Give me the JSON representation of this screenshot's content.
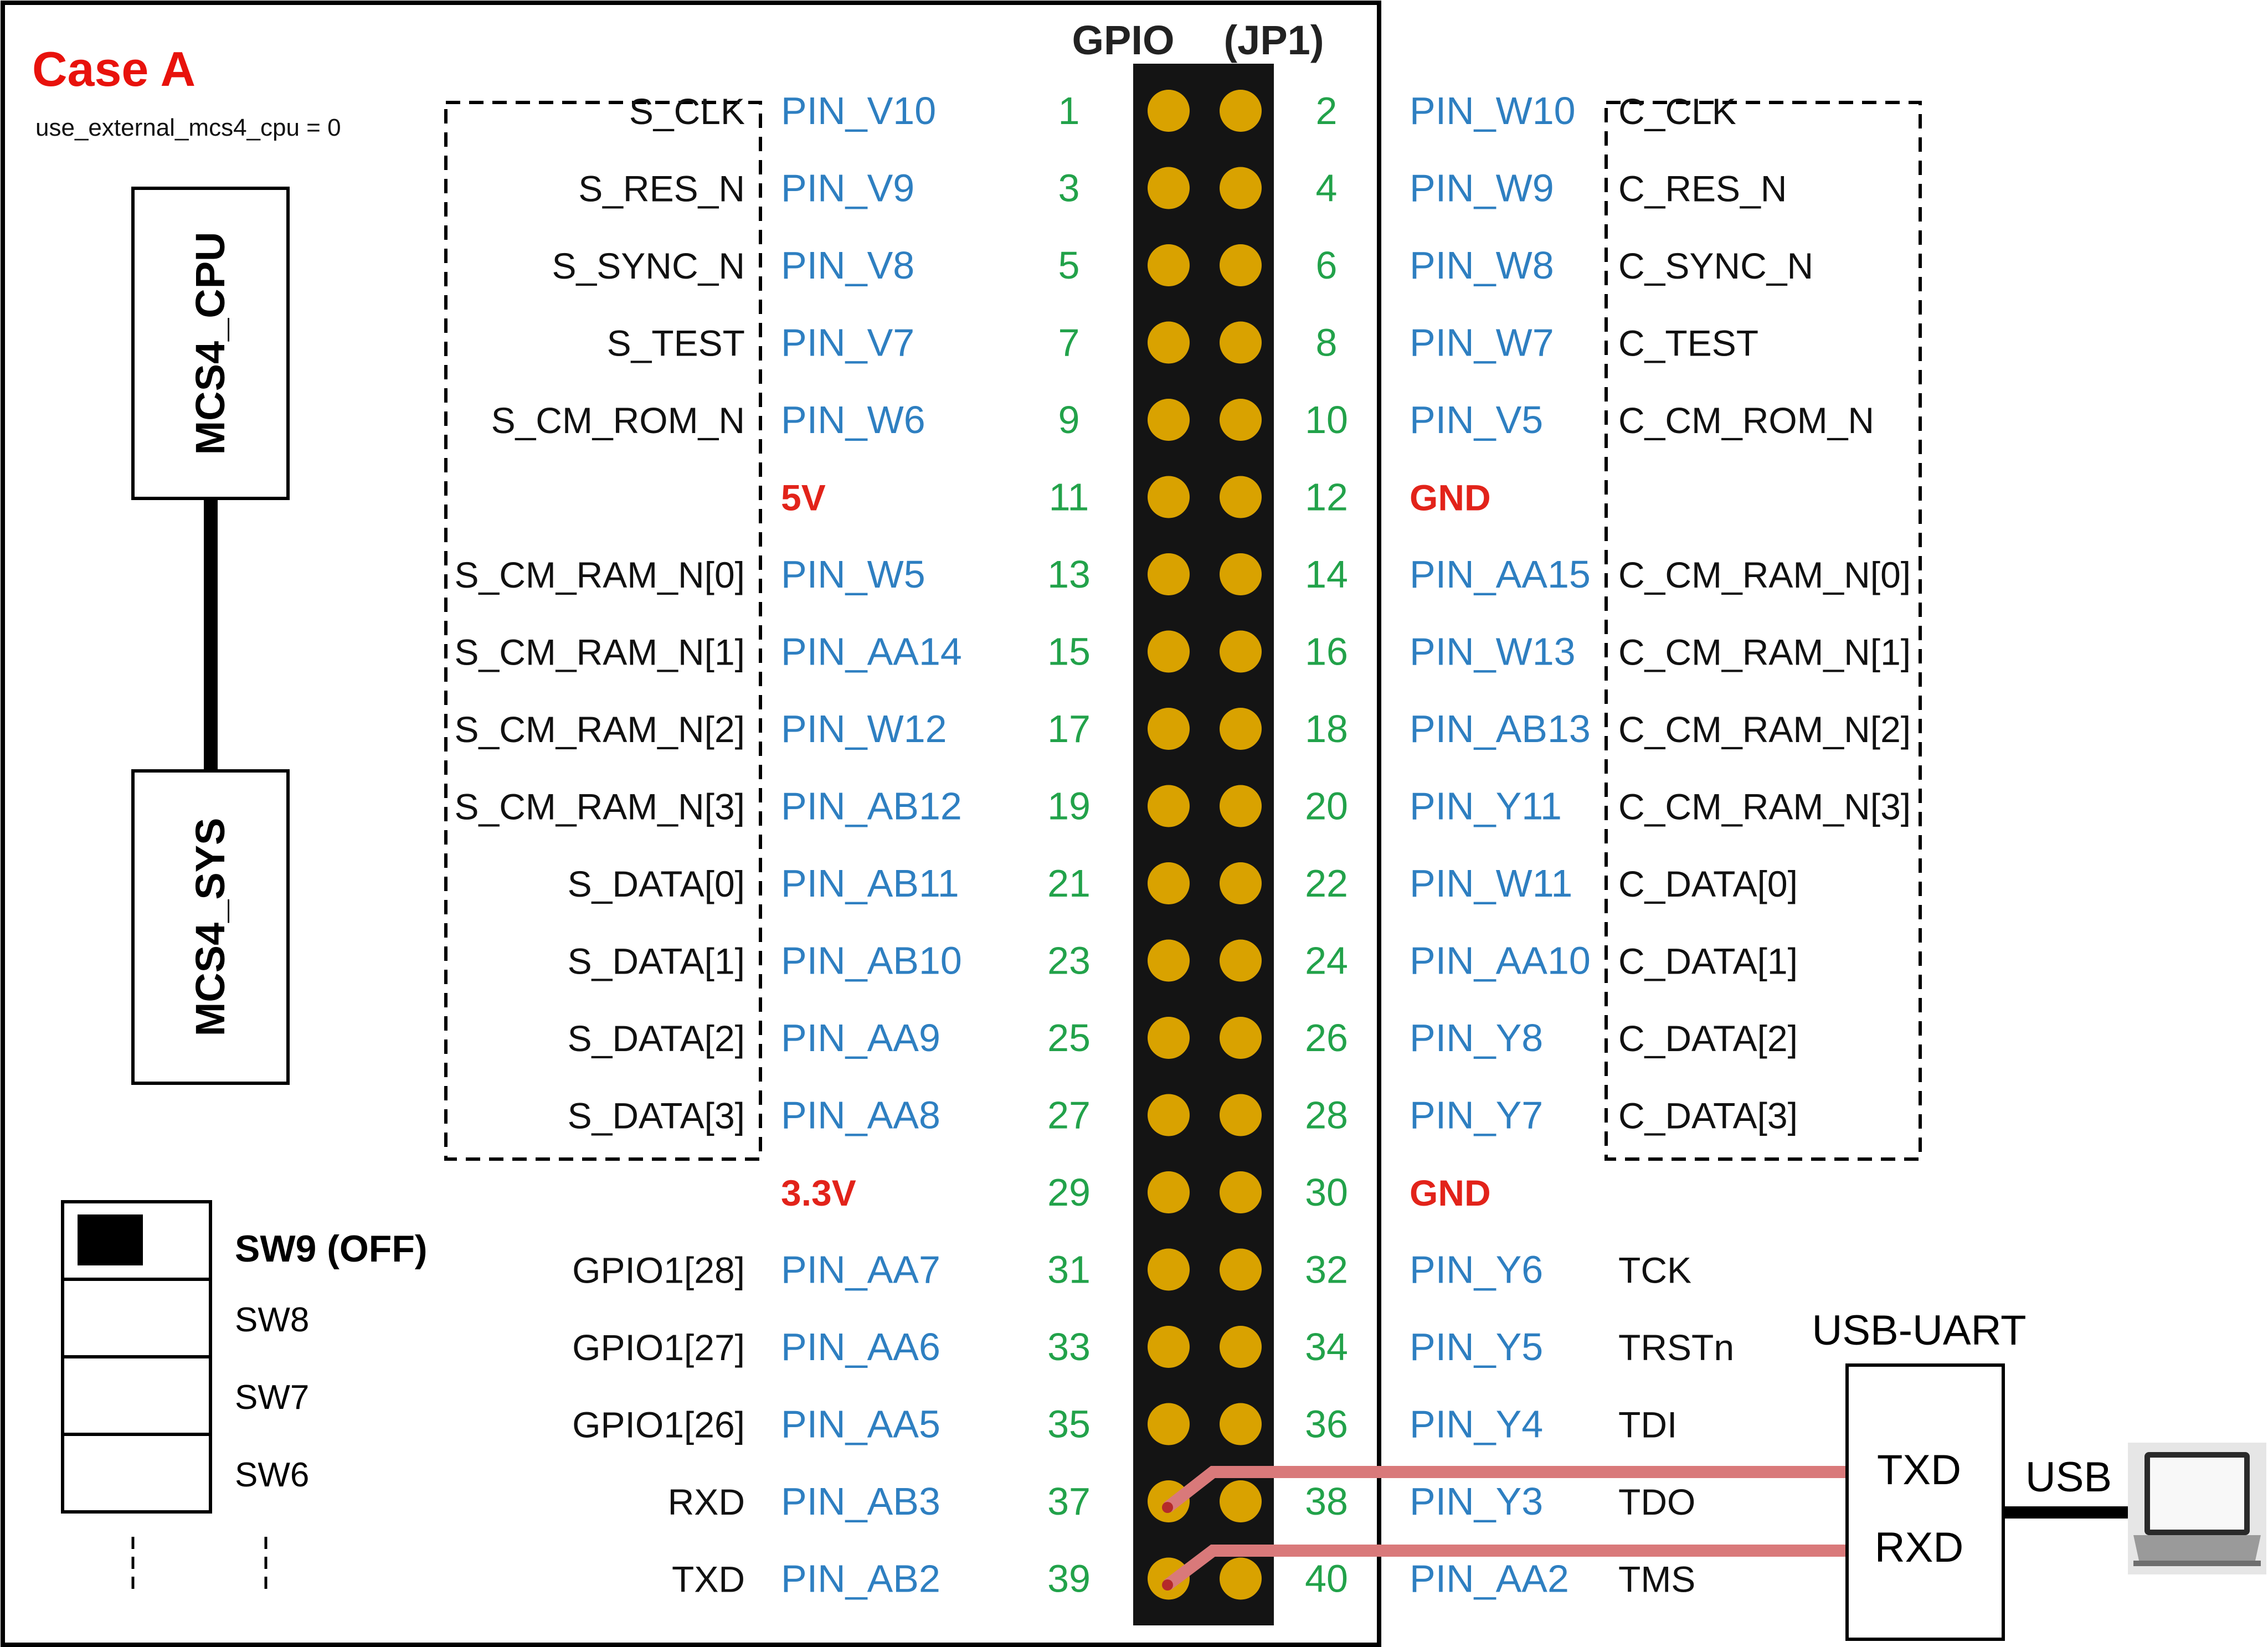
{
  "case": {
    "title": "Case A",
    "param": "use_external_mcs4_cpu = 0",
    "title_color": "#e8120c"
  },
  "header": {
    "gpio": "GPIO",
    "jp1": "(JP1)"
  },
  "blocks": {
    "cpu": "MCS4_CPU",
    "sys": "MCS4_SYS"
  },
  "switches": {
    "sw9": "SW9 (OFF)",
    "sw8": "SW8",
    "sw7": "SW7",
    "sw6": "SW6"
  },
  "rows": [
    {
      "odd": 1,
      "even": 2,
      "left_sig": "S_CLK",
      "left_pin": "PIN_V10",
      "right_pin": "PIN_W10",
      "right_sig": "C_CLK"
    },
    {
      "odd": 3,
      "even": 4,
      "left_sig": "S_RES_N",
      "left_pin": "PIN_V9",
      "right_pin": "PIN_W9",
      "right_sig": "C_RES_N"
    },
    {
      "odd": 5,
      "even": 6,
      "left_sig": "S_SYNC_N",
      "left_pin": "PIN_V8",
      "right_pin": "PIN_W8",
      "right_sig": "C_SYNC_N"
    },
    {
      "odd": 7,
      "even": 8,
      "left_sig": "S_TEST",
      "left_pin": "PIN_V7",
      "right_pin": "PIN_W7",
      "right_sig": "C_TEST"
    },
    {
      "odd": 9,
      "even": 10,
      "left_sig": "S_CM_ROM_N",
      "left_pin": "PIN_W6",
      "right_pin": "PIN_V5",
      "right_sig": "C_CM_ROM_N"
    },
    {
      "odd": 11,
      "even": 12,
      "left_sig": "",
      "left_pin": "5V",
      "right_pin": "GND",
      "right_sig": "",
      "left_power": true,
      "right_power": true
    },
    {
      "odd": 13,
      "even": 14,
      "left_sig": "S_CM_RAM_N[0]",
      "left_pin": "PIN_W5",
      "right_pin": "PIN_AA15",
      "right_sig": "C_CM_RAM_N[0]"
    },
    {
      "odd": 15,
      "even": 16,
      "left_sig": "S_CM_RAM_N[1]",
      "left_pin": "PIN_AA14",
      "right_pin": "PIN_W13",
      "right_sig": "C_CM_RAM_N[1]"
    },
    {
      "odd": 17,
      "even": 18,
      "left_sig": "S_CM_RAM_N[2]",
      "left_pin": "PIN_W12",
      "right_pin": "PIN_AB13",
      "right_sig": "C_CM_RAM_N[2]"
    },
    {
      "odd": 19,
      "even": 20,
      "left_sig": "S_CM_RAM_N[3]",
      "left_pin": "PIN_AB12",
      "right_pin": "PIN_Y11",
      "right_sig": "C_CM_RAM_N[3]"
    },
    {
      "odd": 21,
      "even": 22,
      "left_sig": "S_DATA[0]",
      "left_pin": "PIN_AB11",
      "right_pin": "PIN_W11",
      "right_sig": "C_DATA[0]"
    },
    {
      "odd": 23,
      "even": 24,
      "left_sig": "S_DATA[1]",
      "left_pin": "PIN_AB10",
      "right_pin": "PIN_AA10",
      "right_sig": "C_DATA[1]"
    },
    {
      "odd": 25,
      "even": 26,
      "left_sig": "S_DATA[2]",
      "left_pin": "PIN_AA9",
      "right_pin": "PIN_Y8",
      "right_sig": "C_DATA[2]"
    },
    {
      "odd": 27,
      "even": 28,
      "left_sig": "S_DATA[3]",
      "left_pin": "PIN_AA8",
      "right_pin": "PIN_Y7",
      "right_sig": "C_DATA[3]"
    },
    {
      "odd": 29,
      "even": 30,
      "left_sig": "",
      "left_pin": "3.3V",
      "right_pin": "GND",
      "right_sig": "",
      "left_power": true,
      "right_power": true
    },
    {
      "odd": 31,
      "even": 32,
      "left_sig": "GPIO1[28]",
      "left_pin": "PIN_AA7",
      "right_pin": "PIN_Y6",
      "right_sig": "TCK"
    },
    {
      "odd": 33,
      "even": 34,
      "left_sig": "GPIO1[27]",
      "left_pin": "PIN_AA6",
      "right_pin": "PIN_Y5",
      "right_sig": "TRSTn"
    },
    {
      "odd": 35,
      "even": 36,
      "left_sig": "GPIO1[26]",
      "left_pin": "PIN_AA5",
      "right_pin": "PIN_Y4",
      "right_sig": "TDI"
    },
    {
      "odd": 37,
      "even": 38,
      "left_sig": "RXD",
      "left_pin": "PIN_AB3",
      "right_pin": "PIN_Y3",
      "right_sig": "TDO"
    },
    {
      "odd": 39,
      "even": 40,
      "left_sig": "TXD",
      "left_pin": "PIN_AB2",
      "right_pin": "PIN_AA2",
      "right_sig": "TMS"
    }
  ],
  "uart": {
    "title": "USB-UART",
    "txd": "TXD",
    "rxd": "RXD",
    "usb": "USB"
  },
  "colors": {
    "pin_label": "#2e7fc1",
    "pin_number": "#22a24a",
    "power": "#e2231a",
    "wire": "#d9797a",
    "header_pin": "#d9a200"
  }
}
